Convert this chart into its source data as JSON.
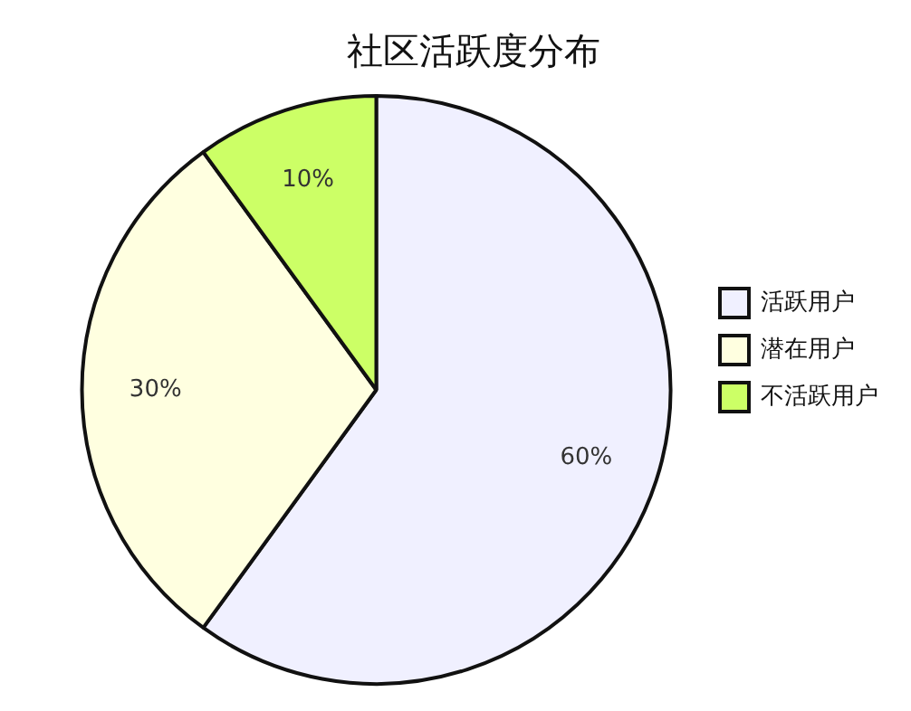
{
  "chart_data": {
    "type": "pie",
    "title": "社区活跃度分布",
    "categories": [
      "活跃用户",
      "潜在用户",
      "不活跃用户"
    ],
    "values": [
      60,
      30,
      10
    ],
    "colors": [
      "#f0f0ff",
      "#ffffe0",
      "#ccff66"
    ],
    "value_labels": [
      "60%",
      "30%",
      "10%"
    ],
    "legend": "right"
  }
}
